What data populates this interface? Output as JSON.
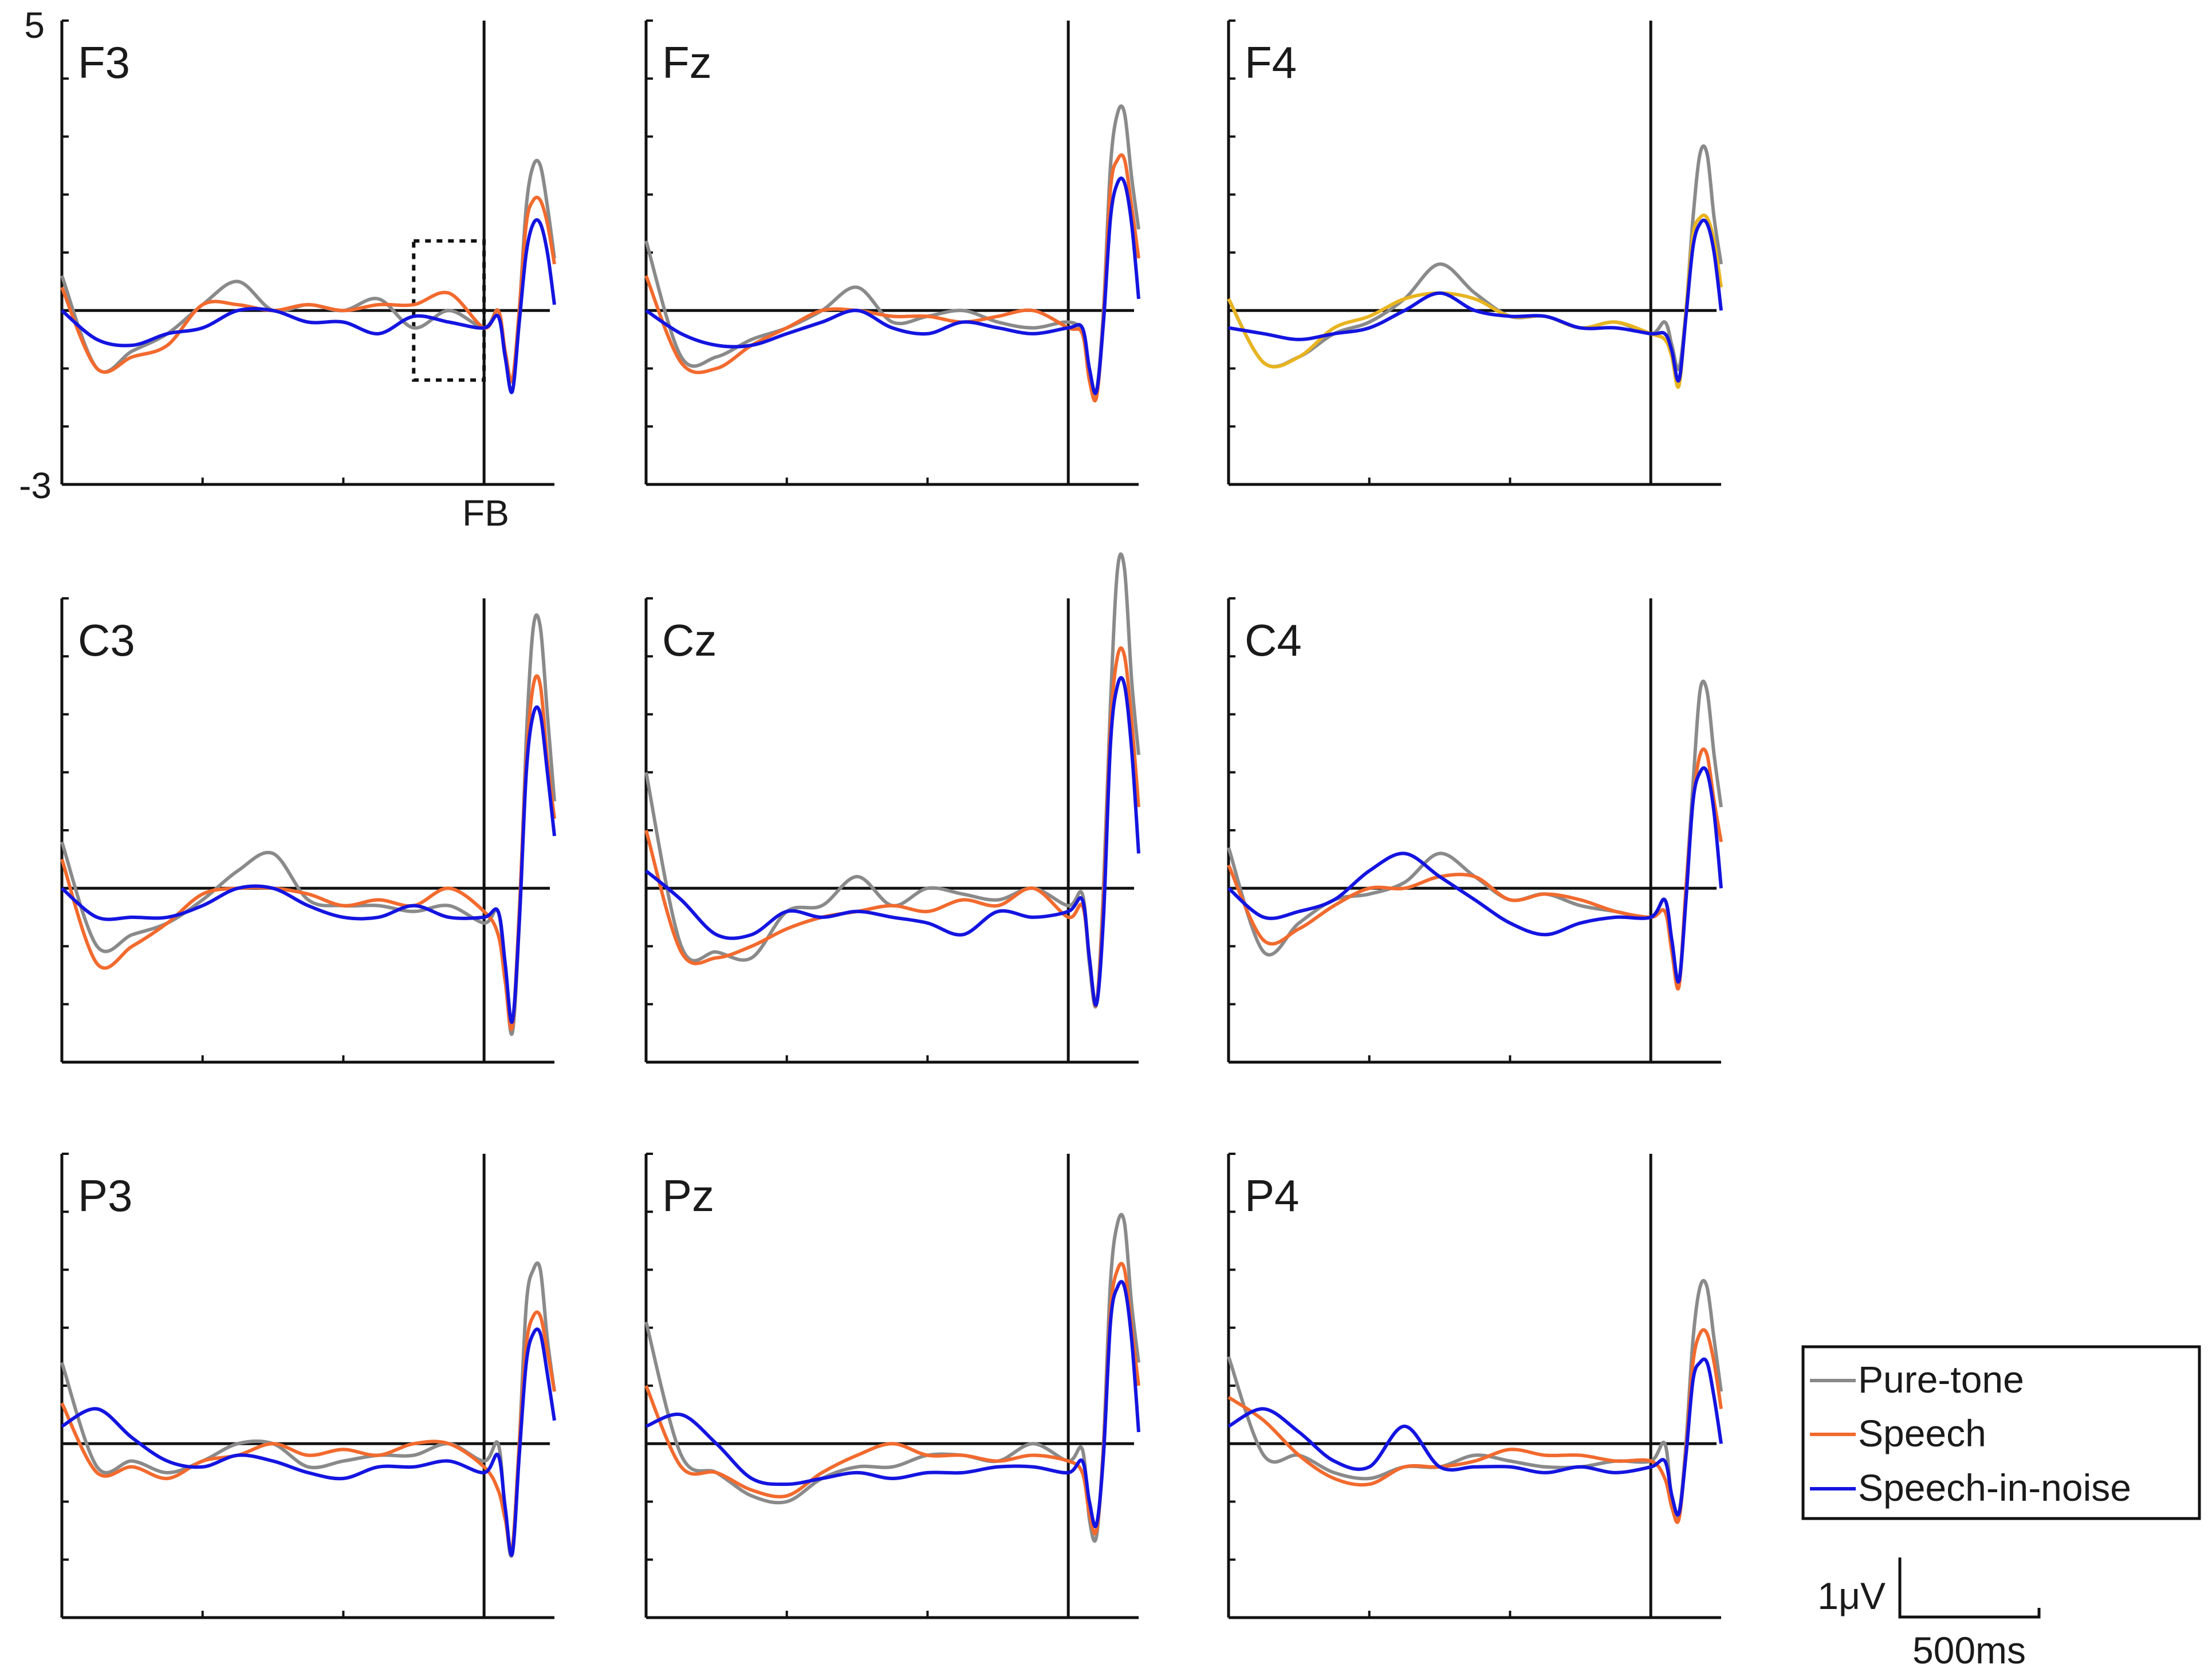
{
  "colors": {
    "Pure-tone": "#8a8a8a",
    "Speech": "#f26a2e",
    "Speech-in-noise": "#1414e0",
    "speech_alt_F4": "#e8b420",
    "axes": "#111111"
  },
  "figure": {
    "y_axis_top_label": "5",
    "y_axis_bottom_label": "-3",
    "fb_label": "FB",
    "scalebar_y_label": "1μV",
    "scalebar_x_label": "500ms"
  },
  "legend": {
    "placement": "bottom-right",
    "entries": [
      "Pure-tone",
      "Speech",
      "Speech-in-noise"
    ]
  },
  "chart_data": [
    {
      "type": "line",
      "panel": "F3",
      "title": "F3",
      "xlim": [
        -3000,
        500
      ],
      "ylim": [
        -3,
        5
      ],
      "grid": false,
      "feedback_marker_ms": 0,
      "dotted_box": true,
      "x": [
        -3000,
        -2750,
        -2500,
        -2250,
        -2000,
        -1750,
        -1500,
        -1250,
        -1000,
        -750,
        -500,
        -250,
        0,
        100,
        150,
        200,
        250,
        300,
        350,
        400,
        450,
        500
      ],
      "series": [
        {
          "name": "Pure-tone",
          "values": [
            0.6,
            -1.0,
            -0.7,
            -0.4,
            0.1,
            0.5,
            0.0,
            0.1,
            0.0,
            0.2,
            -0.3,
            0.0,
            -0.3,
            0.0,
            -0.8,
            -1.2,
            0.0,
            1.8,
            2.5,
            2.5,
            1.8,
            0.9
          ]
        },
        {
          "name": "Speech",
          "values": [
            0.4,
            -1.0,
            -0.8,
            -0.6,
            0.1,
            0.1,
            0.0,
            0.1,
            0.0,
            0.1,
            0.1,
            0.3,
            -0.3,
            0.0,
            -0.7,
            -1.2,
            0.0,
            1.5,
            1.9,
            1.9,
            1.5,
            0.8
          ]
        },
        {
          "name": "Speech-in-noise",
          "values": [
            0.0,
            -0.5,
            -0.6,
            -0.4,
            -0.3,
            0.0,
            0.0,
            -0.2,
            -0.2,
            -0.4,
            -0.1,
            -0.2,
            -0.3,
            -0.1,
            -0.8,
            -1.4,
            -0.2,
            1.0,
            1.5,
            1.5,
            1.0,
            0.1
          ]
        }
      ]
    },
    {
      "type": "line",
      "panel": "Fz",
      "title": "Fz",
      "xlim": [
        -3000,
        500
      ],
      "ylim": [
        -3,
        5
      ],
      "grid": false,
      "feedback_marker_ms": 0,
      "x": [
        -3000,
        -2750,
        -2500,
        -2250,
        -2000,
        -1750,
        -1500,
        -1250,
        -1000,
        -750,
        -500,
        -250,
        0,
        100,
        150,
        200,
        250,
        300,
        350,
        400,
        450,
        500
      ],
      "series": [
        {
          "name": "Pure-tone",
          "values": [
            1.2,
            -0.8,
            -0.8,
            -0.5,
            -0.3,
            0.0,
            0.4,
            -0.2,
            -0.1,
            0.0,
            -0.2,
            -0.3,
            -0.2,
            -0.4,
            -1.2,
            -1.4,
            0.0,
            2.5,
            3.4,
            3.4,
            2.3,
            1.4
          ]
        },
        {
          "name": "Speech",
          "values": [
            0.6,
            -0.9,
            -1.0,
            -0.6,
            -0.3,
            0.0,
            0.0,
            -0.1,
            -0.1,
            -0.2,
            -0.1,
            0.0,
            -0.3,
            -0.4,
            -1.2,
            -1.5,
            -0.1,
            2.1,
            2.6,
            2.6,
            1.8,
            0.9
          ]
        },
        {
          "name": "Speech-in-noise",
          "values": [
            0.0,
            -0.4,
            -0.6,
            -0.6,
            -0.4,
            -0.2,
            0.0,
            -0.3,
            -0.4,
            -0.2,
            -0.3,
            -0.4,
            -0.3,
            -0.3,
            -1.0,
            -1.4,
            -0.2,
            1.6,
            2.2,
            2.2,
            1.5,
            0.2
          ]
        }
      ]
    },
    {
      "type": "line",
      "panel": "F4",
      "title": "F4",
      "xlim": [
        -3000,
        500
      ],
      "ylim": [
        -3,
        5
      ],
      "grid": false,
      "feedback_marker_ms": 0,
      "x": [
        -3000,
        -2750,
        -2500,
        -2250,
        -2000,
        -1750,
        -1500,
        -1250,
        -1000,
        -750,
        -500,
        -250,
        0,
        100,
        150,
        200,
        250,
        300,
        350,
        400,
        450,
        500
      ],
      "series": [
        {
          "name": "Pure-tone",
          "values": [
            0.2,
            -0.9,
            -0.8,
            -0.4,
            -0.2,
            0.2,
            0.8,
            0.3,
            -0.1,
            -0.1,
            -0.3,
            -0.2,
            -0.4,
            -0.2,
            -0.6,
            -1.0,
            0.0,
            1.6,
            2.7,
            2.7,
            1.6,
            0.8
          ]
        },
        {
          "name": "Speech",
          "values": [
            0.2,
            -0.9,
            -0.8,
            -0.3,
            -0.1,
            0.2,
            0.3,
            0.2,
            -0.1,
            -0.1,
            -0.3,
            -0.2,
            -0.4,
            -0.5,
            -0.8,
            -1.3,
            0.0,
            1.3,
            1.6,
            1.6,
            1.2,
            0.4
          ]
        },
        {
          "name": "Speech-in-noise",
          "values": [
            -0.3,
            -0.4,
            -0.5,
            -0.4,
            -0.3,
            0.0,
            0.3,
            0.0,
            -0.1,
            -0.1,
            -0.3,
            -0.3,
            -0.4,
            -0.4,
            -0.7,
            -1.2,
            -0.1,
            1.1,
            1.5,
            1.5,
            1.0,
            0.0
          ]
        }
      ]
    },
    {
      "type": "line",
      "panel": "C3",
      "title": "C3",
      "xlim": [
        -3000,
        500
      ],
      "ylim": [
        -3,
        5
      ],
      "grid": false,
      "feedback_marker_ms": 0,
      "x": [
        -3000,
        -2750,
        -2500,
        -2250,
        -2000,
        -1750,
        -1500,
        -1250,
        -1000,
        -750,
        -500,
        -250,
        0,
        100,
        150,
        200,
        250,
        300,
        350,
        400,
        450,
        500
      ],
      "series": [
        {
          "name": "Pure-tone",
          "values": [
            0.8,
            -1.0,
            -0.8,
            -0.6,
            -0.2,
            0.3,
            0.6,
            -0.2,
            -0.3,
            -0.3,
            -0.4,
            -0.3,
            -0.6,
            -0.4,
            -1.5,
            -2.5,
            -0.6,
            2.6,
            4.5,
            4.5,
            3.0,
            1.5
          ]
        },
        {
          "name": "Speech",
          "values": [
            0.5,
            -1.3,
            -1.0,
            -0.6,
            -0.1,
            0.0,
            0.0,
            -0.1,
            -0.3,
            -0.2,
            -0.3,
            0.0,
            -0.4,
            -0.8,
            -1.6,
            -2.4,
            -0.4,
            2.2,
            3.5,
            3.5,
            2.2,
            1.2
          ]
        },
        {
          "name": "Speech-in-noise",
          "values": [
            0.0,
            -0.5,
            -0.5,
            -0.5,
            -0.3,
            0.0,
            0.0,
            -0.3,
            -0.5,
            -0.5,
            -0.3,
            -0.5,
            -0.5,
            -0.4,
            -1.3,
            -2.3,
            -0.6,
            2.0,
            3.0,
            3.0,
            2.0,
            0.9
          ]
        }
      ]
    },
    {
      "type": "line",
      "panel": "Cz",
      "title": "Cz",
      "xlim": [
        -3000,
        500
      ],
      "ylim": [
        -3,
        5
      ],
      "grid": false,
      "feedback_marker_ms": 0,
      "x": [
        -3000,
        -2750,
        -2500,
        -2250,
        -2000,
        -1750,
        -1500,
        -1250,
        -1000,
        -750,
        -500,
        -250,
        0,
        100,
        150,
        200,
        250,
        300,
        350,
        400,
        450,
        500
      ],
      "series": [
        {
          "name": "Pure-tone",
          "values": [
            2.0,
            -1.0,
            -1.1,
            -1.2,
            -0.4,
            -0.3,
            0.2,
            -0.3,
            0.0,
            -0.1,
            -0.2,
            0.0,
            -0.3,
            -0.1,
            -1.3,
            -2.0,
            0.0,
            3.2,
            5.5,
            5.5,
            3.6,
            2.3
          ]
        },
        {
          "name": "Speech",
          "values": [
            1.0,
            -1.1,
            -1.2,
            -1.0,
            -0.7,
            -0.5,
            -0.4,
            -0.3,
            -0.4,
            -0.2,
            -0.3,
            0.0,
            -0.5,
            -0.3,
            -1.2,
            -2.0,
            -0.2,
            2.8,
            4.0,
            4.0,
            2.9,
            1.4
          ]
        },
        {
          "name": "Speech-in-noise",
          "values": [
            0.3,
            -0.2,
            -0.8,
            -0.8,
            -0.4,
            -0.5,
            -0.4,
            -0.5,
            -0.6,
            -0.8,
            -0.4,
            -0.5,
            -0.4,
            -0.2,
            -1.2,
            -2.0,
            -0.5,
            2.5,
            3.5,
            3.5,
            2.4,
            0.6
          ]
        }
      ]
    },
    {
      "type": "line",
      "panel": "C4",
      "title": "C4",
      "xlim": [
        -3000,
        500
      ],
      "ylim": [
        -3,
        5
      ],
      "grid": false,
      "feedback_marker_ms": 0,
      "x": [
        -3000,
        -2750,
        -2500,
        -2250,
        -2000,
        -1750,
        -1500,
        -1250,
        -1000,
        -750,
        -500,
        -250,
        0,
        100,
        150,
        200,
        250,
        300,
        350,
        400,
        450,
        500
      ],
      "series": [
        {
          "name": "Pure-tone",
          "values": [
            0.7,
            -1.1,
            -0.6,
            -0.2,
            -0.1,
            0.1,
            0.6,
            0.2,
            -0.2,
            -0.1,
            -0.3,
            -0.4,
            -0.5,
            -0.2,
            -1.0,
            -1.6,
            0.0,
            1.8,
            3.4,
            3.4,
            2.3,
            1.4
          ]
        },
        {
          "name": "Speech",
          "values": [
            0.4,
            -0.9,
            -0.7,
            -0.3,
            0.0,
            0.0,
            0.2,
            0.2,
            -0.2,
            -0.1,
            -0.2,
            -0.4,
            -0.5,
            -0.4,
            -1.1,
            -1.7,
            0.0,
            1.5,
            2.3,
            2.3,
            1.5,
            0.8
          ]
        },
        {
          "name": "Speech-in-noise",
          "values": [
            0.0,
            -0.5,
            -0.4,
            -0.2,
            0.3,
            0.6,
            0.2,
            -0.2,
            -0.6,
            -0.8,
            -0.6,
            -0.5,
            -0.5,
            -0.2,
            -0.9,
            -1.6,
            -0.2,
            1.5,
            2.0,
            2.0,
            1.3,
            0.0
          ]
        }
      ]
    },
    {
      "type": "line",
      "panel": "P3",
      "title": "P3",
      "xlim": [
        -3000,
        500
      ],
      "ylim": [
        -3,
        5
      ],
      "grid": false,
      "feedback_marker_ms": 0,
      "x": [
        -3000,
        -2750,
        -2500,
        -2250,
        -2000,
        -1750,
        -1500,
        -1250,
        -1000,
        -750,
        -500,
        -250,
        0,
        100,
        150,
        200,
        250,
        300,
        350,
        400,
        450,
        500
      ],
      "series": [
        {
          "name": "Pure-tone",
          "values": [
            1.4,
            -0.4,
            -0.3,
            -0.5,
            -0.3,
            0.0,
            0.0,
            -0.4,
            -0.3,
            -0.2,
            -0.2,
            0.0,
            -0.3,
            0.0,
            -1.2,
            -1.9,
            0.0,
            2.4,
            3.0,
            3.0,
            1.8,
            0.9
          ]
        },
        {
          "name": "Speech",
          "values": [
            0.7,
            -0.5,
            -0.4,
            -0.6,
            -0.3,
            -0.2,
            0.0,
            -0.2,
            -0.1,
            -0.2,
            0.0,
            0.0,
            -0.4,
            -0.8,
            -1.3,
            -1.8,
            0.0,
            1.7,
            2.2,
            2.2,
            1.6,
            0.9
          ]
        },
        {
          "name": "Speech-in-noise",
          "values": [
            0.3,
            0.6,
            0.1,
            -0.3,
            -0.4,
            -0.2,
            -0.3,
            -0.5,
            -0.6,
            -0.4,
            -0.4,
            -0.3,
            -0.5,
            -0.2,
            -1.1,
            -1.9,
            -0.2,
            1.4,
            1.9,
            1.9,
            1.2,
            0.4
          ]
        }
      ]
    },
    {
      "type": "line",
      "panel": "Pz",
      "title": "Pz",
      "xlim": [
        -3000,
        500
      ],
      "ylim": [
        -3,
        5
      ],
      "grid": false,
      "feedback_marker_ms": 0,
      "x": [
        -3000,
        -2750,
        -2500,
        -2250,
        -2000,
        -1750,
        -1500,
        -1250,
        -1000,
        -750,
        -500,
        -250,
        0,
        100,
        150,
        200,
        250,
        300,
        350,
        400,
        450,
        500
      ],
      "series": [
        {
          "name": "Pure-tone",
          "values": [
            2.1,
            -0.2,
            -0.5,
            -0.9,
            -1.0,
            -0.6,
            -0.4,
            -0.4,
            -0.2,
            -0.2,
            -0.3,
            0.0,
            -0.3,
            -0.1,
            -1.3,
            -1.6,
            0.0,
            2.8,
            3.8,
            3.8,
            2.4,
            1.4
          ]
        },
        {
          "name": "Speech",
          "values": [
            1.0,
            -0.4,
            -0.5,
            -0.8,
            -0.9,
            -0.5,
            -0.2,
            0.0,
            -0.2,
            -0.2,
            -0.3,
            -0.2,
            -0.3,
            -0.5,
            -1.2,
            -1.5,
            -0.1,
            2.3,
            3.0,
            3.0,
            2.0,
            1.0
          ]
        },
        {
          "name": "Speech-in-noise",
          "values": [
            0.3,
            0.5,
            0.0,
            -0.6,
            -0.7,
            -0.6,
            -0.5,
            -0.6,
            -0.5,
            -0.5,
            -0.4,
            -0.4,
            -0.5,
            -0.3,
            -1.0,
            -1.4,
            -0.2,
            2.1,
            2.7,
            2.7,
            1.8,
            0.2
          ]
        }
      ]
    },
    {
      "type": "line",
      "panel": "P4",
      "title": "P4",
      "xlim": [
        -3000,
        500
      ],
      "ylim": [
        -3,
        5
      ],
      "grid": false,
      "feedback_marker_ms": 0,
      "x": [
        -3000,
        -2750,
        -2500,
        -2250,
        -2000,
        -1750,
        -1500,
        -1250,
        -1000,
        -750,
        -500,
        -250,
        0,
        100,
        150,
        200,
        250,
        300,
        350,
        400,
        450,
        500
      ],
      "series": [
        {
          "name": "Pure-tone",
          "values": [
            1.5,
            -0.2,
            -0.2,
            -0.5,
            -0.6,
            -0.4,
            -0.4,
            -0.2,
            -0.3,
            -0.4,
            -0.4,
            -0.3,
            -0.3,
            0.0,
            -1.0,
            -1.2,
            0.0,
            1.8,
            2.7,
            2.7,
            1.8,
            0.9
          ]
        },
        {
          "name": "Speech",
          "values": [
            0.8,
            0.4,
            -0.2,
            -0.6,
            -0.7,
            -0.4,
            -0.4,
            -0.3,
            -0.1,
            -0.2,
            -0.2,
            -0.3,
            -0.3,
            -0.6,
            -1.1,
            -1.3,
            -0.1,
            1.4,
            1.9,
            1.9,
            1.4,
            0.6
          ]
        },
        {
          "name": "Speech-in-noise",
          "values": [
            0.3,
            0.6,
            0.2,
            -0.3,
            -0.4,
            0.3,
            -0.4,
            -0.4,
            -0.4,
            -0.5,
            -0.4,
            -0.5,
            -0.4,
            -0.3,
            -0.9,
            -1.2,
            -0.2,
            1.1,
            1.4,
            1.4,
            0.8,
            0.0
          ]
        }
      ]
    }
  ]
}
